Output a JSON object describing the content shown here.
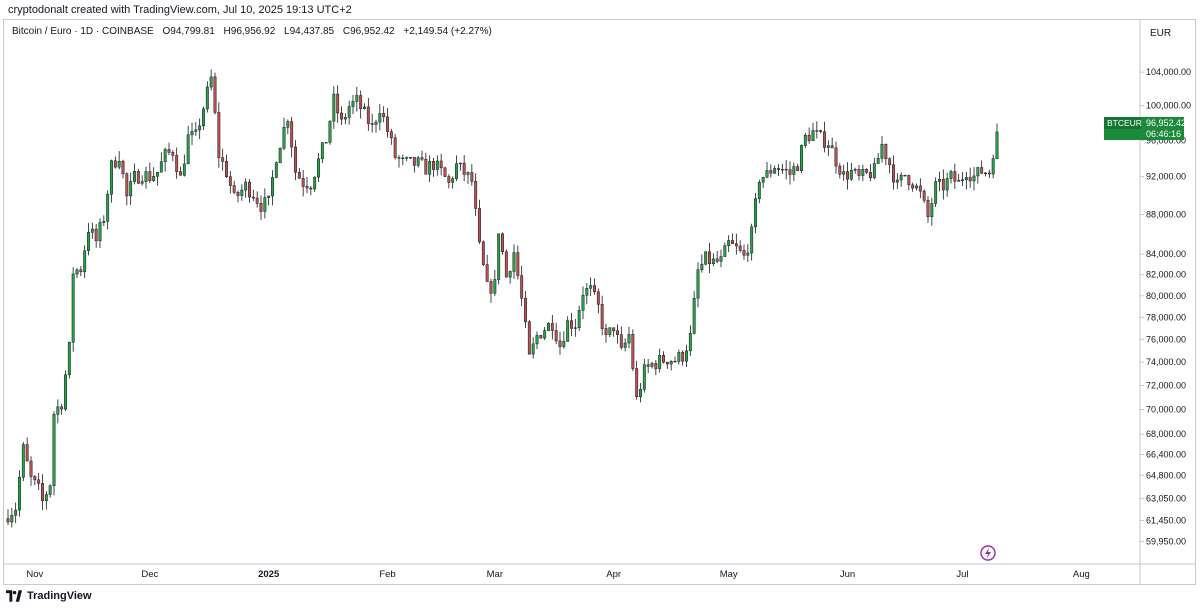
{
  "caption": "cryptodonalt created with TradingView.com, Jul 10, 2025 19:13 UTC+2",
  "legend": {
    "symbol": "Bitcoin / Euro · 1D · COINBASE",
    "open": "O94,799.81",
    "high": "H96,956.92",
    "low": "L94,437.85",
    "close": "C96,952.42",
    "change": "+2,149.54 (+2.27%)"
  },
  "currency": "EUR",
  "price_tag": {
    "ticker": "BTCEUR",
    "price": "96,952.42",
    "countdown": "06:46:16"
  },
  "footer_brand": "TradingView",
  "colors": {
    "up": "#089981",
    "down": "#f23645",
    "up_body": "#26a641",
    "down_body": "#c0504d",
    "tag": "#1b8a3a"
  },
  "chart_data": {
    "type": "candlestick",
    "title": "",
    "xlabel": "",
    "ylabel": "",
    "y_axis_scale": "log",
    "ylim": [
      59500,
      107500
    ],
    "y_ticks": [
      "104,000.00",
      "100,000.00",
      "96,000.00",
      "92,000.00",
      "88,000.00",
      "84,000.00",
      "82,000.00",
      "80,000.00",
      "78,000.00",
      "76,000.00",
      "74,000.00",
      "72,000.00",
      "70,000.00",
      "68,000.00",
      "66,400.00",
      "64,800.00",
      "63,050.00",
      "61,450.00",
      "59,950.00"
    ],
    "x_ticks": [
      "Nov",
      "Dec",
      "2025",
      "Feb",
      "Mar",
      "Apr",
      "May",
      "Jun",
      "Jul",
      "Aug"
    ],
    "x_tick_dates": [
      "2024-11-01",
      "2024-12-01",
      "2025-01-01",
      "2025-02-01",
      "2025-03-01",
      "2025-04-01",
      "2025-05-01",
      "2025-06-01",
      "2025-07-01",
      "2025-08-01"
    ],
    "x_range": [
      "2024-10-25",
      "2025-08-15"
    ],
    "grid": false,
    "legend_position": "top-left",
    "closes_sampled": [
      [
        "2024-10-25",
        61900
      ],
      [
        "2024-10-27",
        62400
      ],
      [
        "2024-10-29",
        66800
      ],
      [
        "2024-10-31",
        64500
      ],
      [
        "2024-11-02",
        63700
      ],
      [
        "2024-11-03",
        62800
      ],
      [
        "2024-11-05",
        64200
      ],
      [
        "2024-11-06",
        69700
      ],
      [
        "2024-11-08",
        70600
      ],
      [
        "2024-11-10",
        75200
      ],
      [
        "2024-11-11",
        82300
      ],
      [
        "2024-11-13",
        82600
      ],
      [
        "2024-11-15",
        86600
      ],
      [
        "2024-11-17",
        85300
      ],
      [
        "2024-11-19",
        87700
      ],
      [
        "2024-11-21",
        93100
      ],
      [
        "2024-11-23",
        94400
      ],
      [
        "2024-11-25",
        89800
      ],
      [
        "2024-11-27",
        91900
      ],
      [
        "2024-11-29",
        92300
      ],
      [
        "2024-12-01",
        92000
      ],
      [
        "2024-12-03",
        92500
      ],
      [
        "2024-12-05",
        94300
      ],
      [
        "2024-12-07",
        94800
      ],
      [
        "2024-12-09",
        91800
      ],
      [
        "2024-12-11",
        96300
      ],
      [
        "2024-12-13",
        96400
      ],
      [
        "2024-12-16",
        101500
      ],
      [
        "2024-12-17",
        103200
      ],
      [
        "2024-12-19",
        94400
      ],
      [
        "2024-12-21",
        92500
      ],
      [
        "2024-12-23",
        89600
      ],
      [
        "2024-12-26",
        91000
      ],
      [
        "2024-12-28",
        90200
      ],
      [
        "2024-12-30",
        89000
      ],
      [
        "2025-01-01",
        89200
      ],
      [
        "2025-01-03",
        94300
      ],
      [
        "2025-01-06",
        98800
      ],
      [
        "2025-01-08",
        92600
      ],
      [
        "2025-01-10",
        91400
      ],
      [
        "2025-01-12",
        91300
      ],
      [
        "2025-01-14",
        93700
      ],
      [
        "2025-01-16",
        96100
      ],
      [
        "2025-01-18",
        100600
      ],
      [
        "2025-01-20",
        97900
      ],
      [
        "2025-01-22",
        99900
      ],
      [
        "2025-01-24",
        100500
      ],
      [
        "2025-01-26",
        99000
      ],
      [
        "2025-01-28",
        97400
      ],
      [
        "2025-01-30",
        99800
      ],
      [
        "2025-02-01",
        97100
      ],
      [
        "2025-02-03",
        94200
      ],
      [
        "2025-02-05",
        93500
      ],
      [
        "2025-02-07",
        93400
      ],
      [
        "2025-02-09",
        93400
      ],
      [
        "2025-02-11",
        92900
      ],
      [
        "2025-02-13",
        93400
      ],
      [
        "2025-02-15",
        92500
      ],
      [
        "2025-02-17",
        91200
      ],
      [
        "2025-02-19",
        93200
      ],
      [
        "2025-02-21",
        92400
      ],
      [
        "2025-02-23",
        91500
      ],
      [
        "2025-02-25",
        84600
      ],
      [
        "2025-02-27",
        80700
      ],
      [
        "2025-03-01",
        81000
      ],
      [
        "2025-03-02",
        86500
      ],
      [
        "2025-03-04",
        81800
      ],
      [
        "2025-03-06",
        84200
      ],
      [
        "2025-03-08",
        79600
      ],
      [
        "2025-03-10",
        74300
      ],
      [
        "2025-03-12",
        76300
      ],
      [
        "2025-03-14",
        77000
      ],
      [
        "2025-03-16",
        77500
      ],
      [
        "2025-03-18",
        75500
      ],
      [
        "2025-03-20",
        77500
      ],
      [
        "2025-03-22",
        77400
      ],
      [
        "2025-03-24",
        80400
      ],
      [
        "2025-03-26",
        80500
      ],
      [
        "2025-03-28",
        78900
      ],
      [
        "2025-03-30",
        76000
      ],
      [
        "2025-04-01",
        77200
      ],
      [
        "2025-04-03",
        74800
      ],
      [
        "2025-04-05",
        76400
      ],
      [
        "2025-04-07",
        70800
      ],
      [
        "2025-04-09",
        73200
      ],
      [
        "2025-04-11",
        73800
      ],
      [
        "2025-04-13",
        74100
      ],
      [
        "2025-04-15",
        74300
      ],
      [
        "2025-04-17",
        74200
      ],
      [
        "2025-04-19",
        74600
      ],
      [
        "2025-04-21",
        76200
      ],
      [
        "2025-04-23",
        82300
      ],
      [
        "2025-04-25",
        83500
      ],
      [
        "2025-04-27",
        83200
      ],
      [
        "2025-04-29",
        83300
      ],
      [
        "2025-05-01",
        85000
      ],
      [
        "2025-05-03",
        84500
      ],
      [
        "2025-05-05",
        83700
      ],
      [
        "2025-05-07",
        86000
      ],
      [
        "2025-05-09",
        91900
      ],
      [
        "2025-05-11",
        92200
      ],
      [
        "2025-05-13",
        93200
      ],
      [
        "2025-05-15",
        92800
      ],
      [
        "2025-05-17",
        92300
      ],
      [
        "2025-05-19",
        93400
      ],
      [
        "2025-05-21",
        96300
      ],
      [
        "2025-05-23",
        96900
      ],
      [
        "2025-05-25",
        96200
      ],
      [
        "2025-05-27",
        95800
      ],
      [
        "2025-05-29",
        93800
      ],
      [
        "2025-05-31",
        92100
      ],
      [
        "2025-06-02",
        92500
      ],
      [
        "2025-06-04",
        91800
      ],
      [
        "2025-06-06",
        92200
      ],
      [
        "2025-06-08",
        92600
      ],
      [
        "2025-06-10",
        95500
      ],
      [
        "2025-06-12",
        93400
      ],
      [
        "2025-06-14",
        91000
      ],
      [
        "2025-06-16",
        92200
      ],
      [
        "2025-06-18",
        91400
      ],
      [
        "2025-06-20",
        90100
      ],
      [
        "2025-06-22",
        87700
      ],
      [
        "2025-06-24",
        90900
      ],
      [
        "2025-06-26",
        91000
      ],
      [
        "2025-06-28",
        91900
      ],
      [
        "2025-06-30",
        91300
      ],
      [
        "2025-07-02",
        92700
      ],
      [
        "2025-07-04",
        92000
      ],
      [
        "2025-07-06",
        92600
      ],
      [
        "2025-07-08",
        92500
      ],
      [
        "2025-07-09",
        94800
      ],
      [
        "2025-07-10",
        96952
      ]
    ]
  }
}
